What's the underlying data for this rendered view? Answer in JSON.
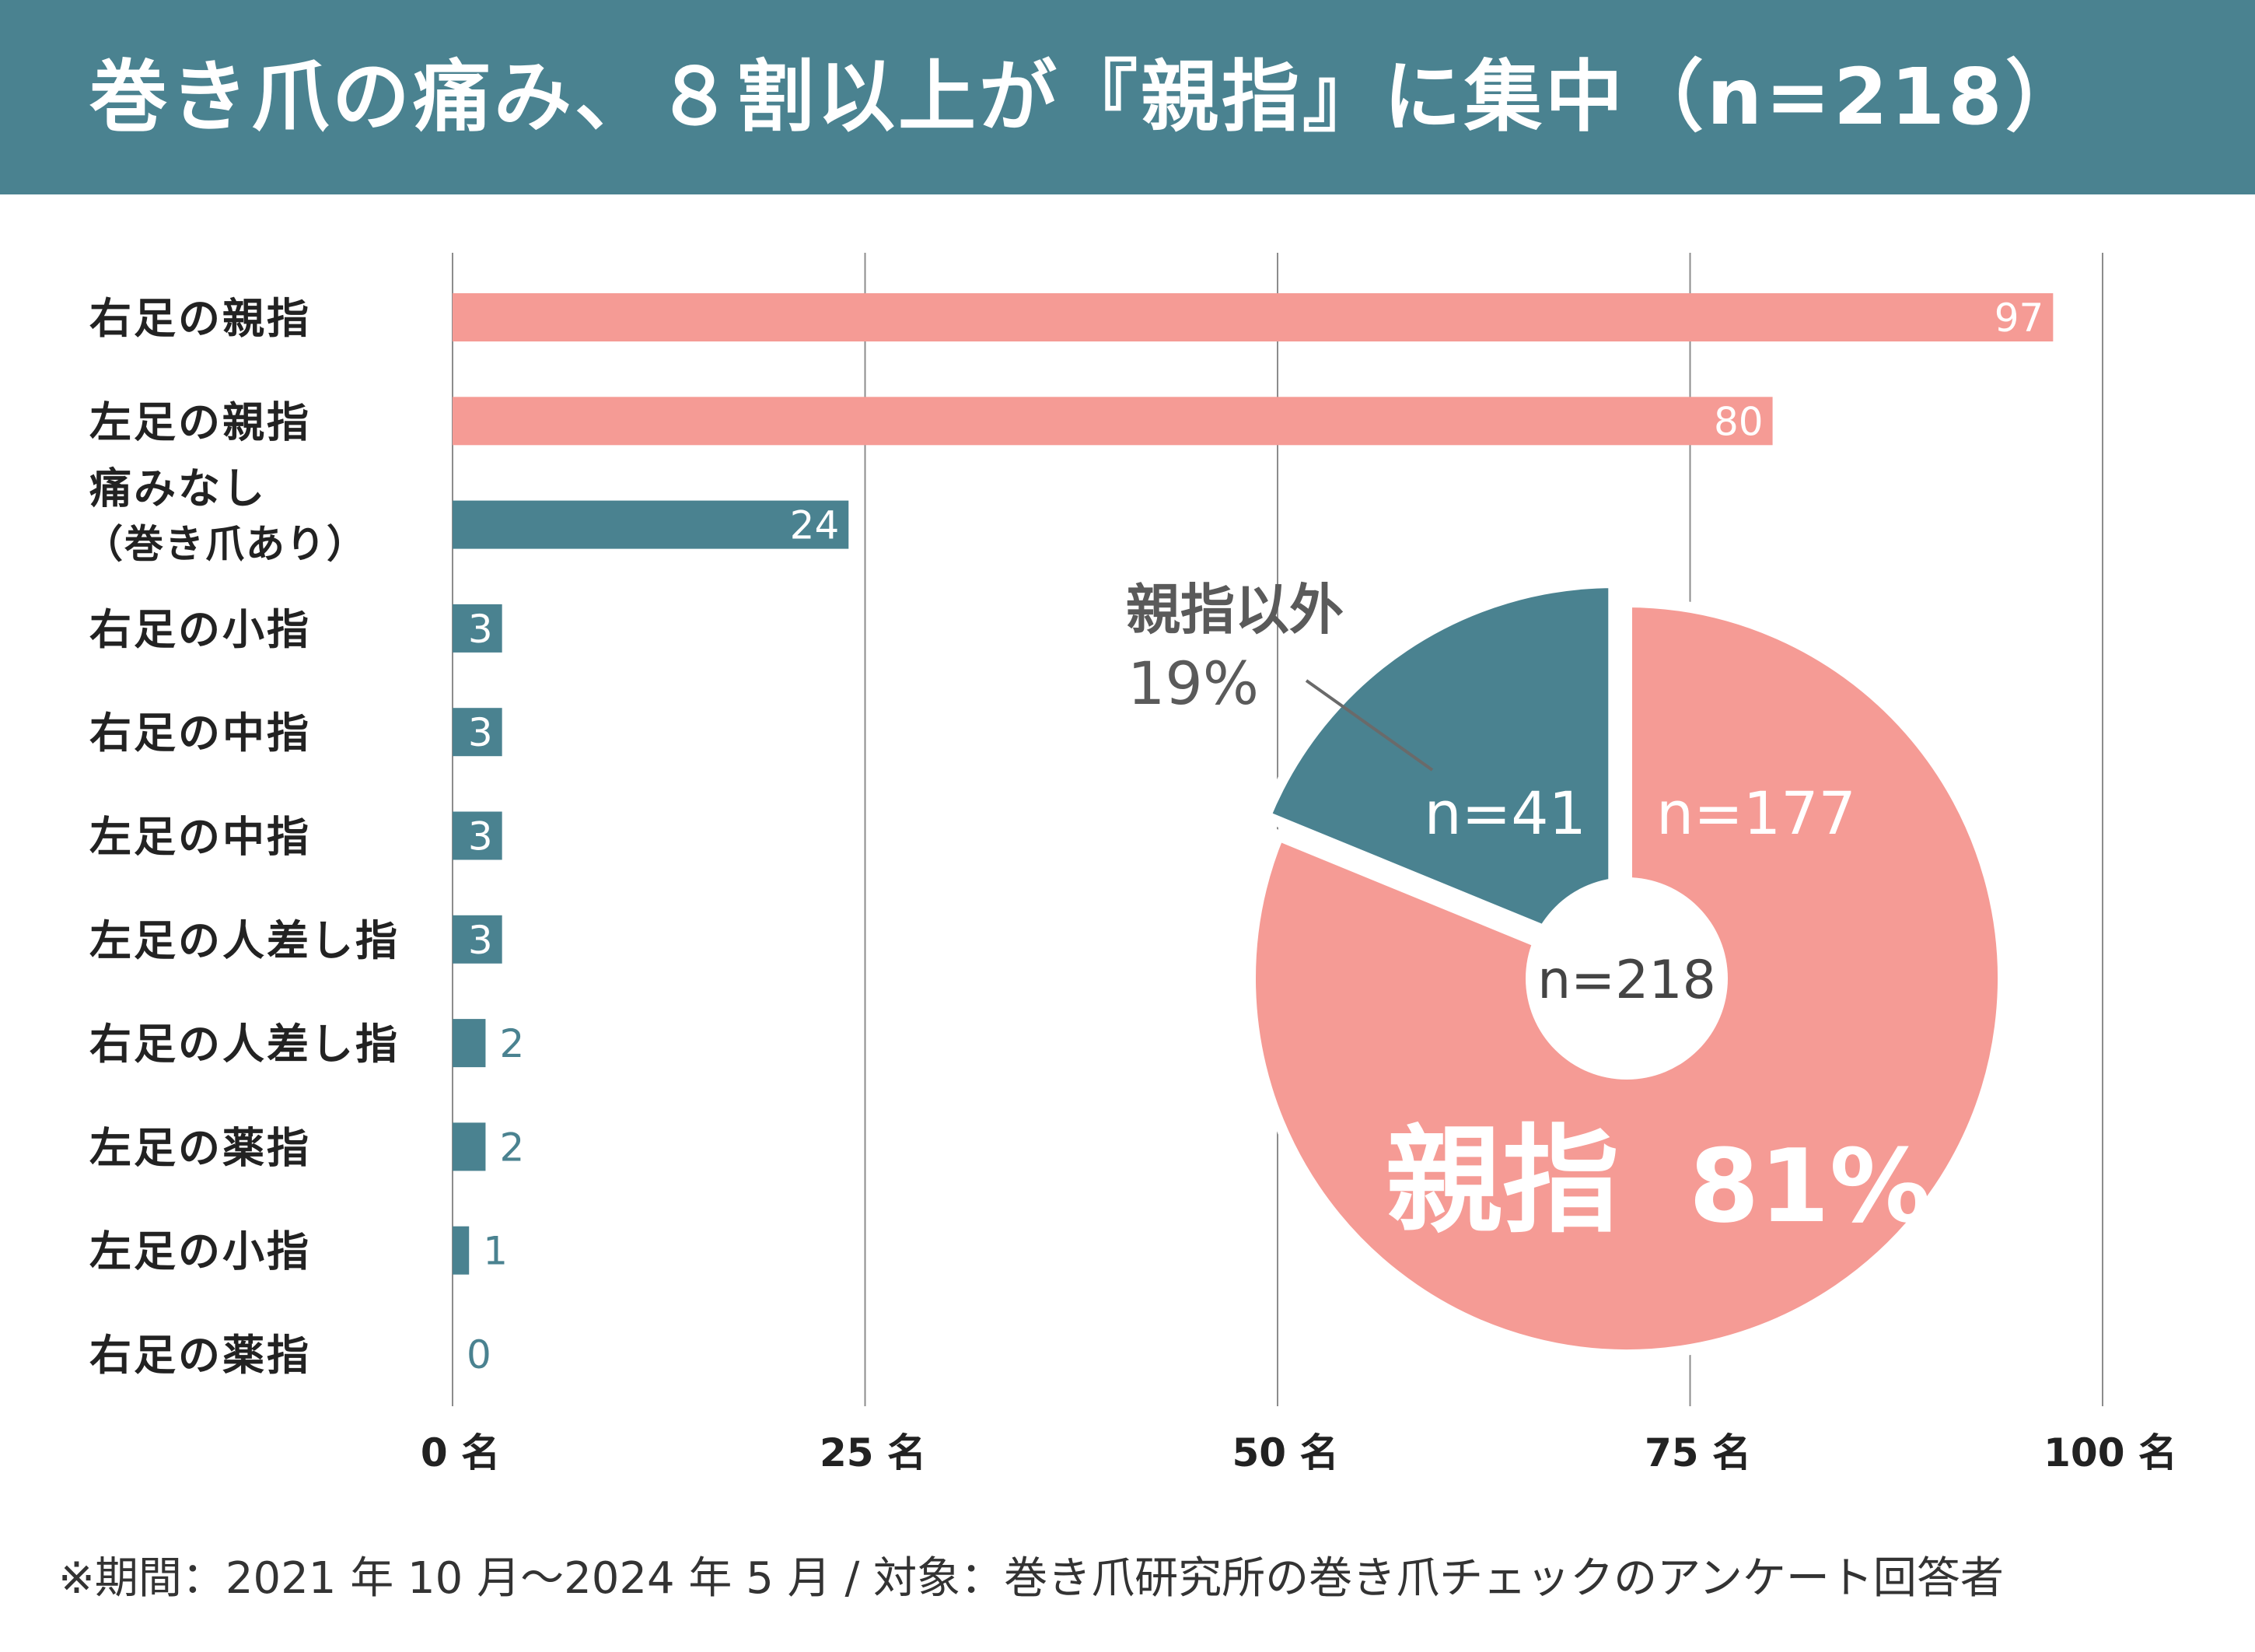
{
  "title": "巻き爪の痛み、８割以上が『親指』に集中（n=218）",
  "footnote": "※期間：2021 年 10 月〜2024 年 5 月 / 対象：巻き爪研究所の巻き爪チェックのアンケート回答者",
  "colors": {
    "header": "#4a8290",
    "pink": "#f59b95",
    "teal": "#4a8290",
    "grid": "#8c8c8c",
    "label": "#222222"
  },
  "chart_data": [
    {
      "type": "bar",
      "orientation": "horizontal",
      "categories": [
        "右足の親指",
        "左足の親指",
        "痛みなし\n（巻き爪あり）",
        "右足の小指",
        "右足の中指",
        "左足の中指",
        "左足の人差し指",
        "右足の人差し指",
        "左足の薬指",
        "左足の小指",
        "右足の薬指"
      ],
      "values": [
        97,
        80,
        24,
        3,
        3,
        3,
        3,
        2,
        2,
        1,
        0
      ],
      "bar_colors": [
        "pink",
        "pink",
        "teal",
        "teal",
        "teal",
        "teal",
        "teal",
        "teal",
        "teal",
        "teal",
        "teal"
      ],
      "xlim": [
        0,
        100
      ],
      "xticks": [
        0,
        25,
        50,
        75,
        100
      ],
      "xtick_labels": [
        "0 名",
        "25 名",
        "50 名",
        "75 名",
        "100 名"
      ],
      "grid": true
    },
    {
      "type": "pie",
      "style": "donut",
      "center_label": "n=218",
      "slices": [
        {
          "label": "親指",
          "percent_label": "81%",
          "count_label": "n=177",
          "value": 177,
          "color": "pink"
        },
        {
          "label": "親指以外",
          "percent_label": "19%",
          "count_label": "n=41",
          "value": 41,
          "color": "teal",
          "exploded": true
        }
      ]
    }
  ]
}
